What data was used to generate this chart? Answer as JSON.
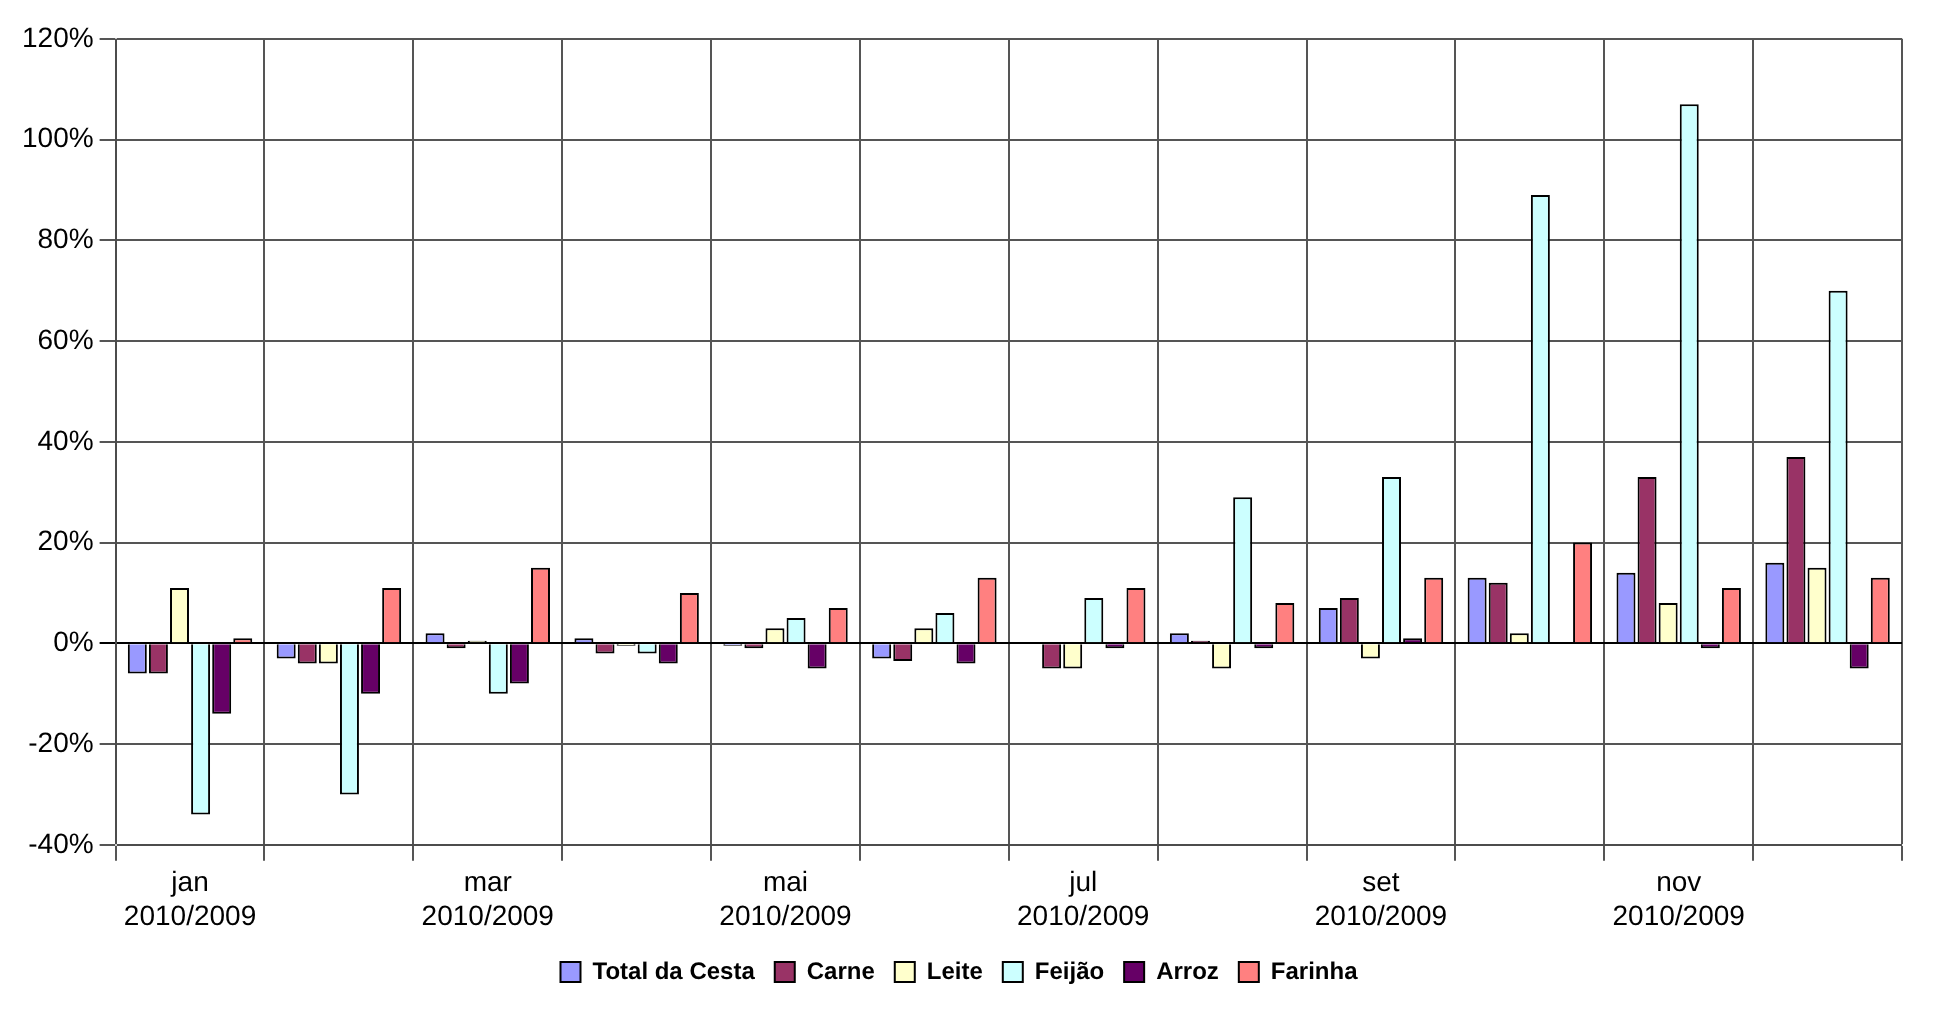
{
  "chart_data": {
    "type": "bar",
    "categories": [
      "jan\n2010/2009",
      null,
      "mar\n2010/2009",
      null,
      "mai\n2010/2009",
      null,
      "jul\n2010/2009",
      null,
      "set\n2010/2009",
      null,
      "nov\n2010/2009",
      null
    ],
    "series": [
      {
        "name": "Total da Cesta",
        "color": "#9999ff",
        "values": [
          -6,
          -3,
          2,
          1,
          -0.5,
          -3,
          0,
          2,
          7,
          13,
          14,
          16
        ]
      },
      {
        "name": "Carne",
        "color": "#993366",
        "values": [
          -6,
          -4,
          -1,
          -2,
          -1,
          -3.5,
          -5,
          0.5,
          9,
          12,
          33,
          37
        ]
      },
      {
        "name": "Leite",
        "color": "#ffffcc",
        "values": [
          11,
          -4,
          0.5,
          -0.5,
          3,
          3,
          -5,
          -5,
          -3,
          2,
          8,
          15
        ]
      },
      {
        "name": "Feijão",
        "color": "#ccffff",
        "values": [
          -34,
          -30,
          -10,
          -2,
          5,
          6,
          9,
          29,
          33,
          89,
          107,
          70
        ]
      },
      {
        "name": "Arroz",
        "color": "#660066",
        "values": [
          -14,
          -10,
          -8,
          -4,
          -5,
          -4,
          -1,
          -1,
          1,
          0,
          -1,
          -5
        ]
      },
      {
        "name": "Farinha",
        "color": "#ff8080",
        "values": [
          1,
          11,
          15,
          10,
          7,
          13,
          11,
          8,
          13,
          20,
          11,
          13
        ]
      }
    ],
    "ylim": [
      -40,
      120
    ],
    "yticks": [
      {
        "value": -40,
        "label": "-40%"
      },
      {
        "value": -20,
        "label": "-20%"
      },
      {
        "value": 0,
        "label": "0%"
      },
      {
        "value": 20,
        "label": "20%"
      },
      {
        "value": 40,
        "label": "40%"
      },
      {
        "value": 60,
        "label": "60%"
      },
      {
        "value": 80,
        "label": "80%"
      },
      {
        "value": 100,
        "label": "100%"
      },
      {
        "value": 120,
        "label": "120%"
      }
    ],
    "grid": true,
    "legend": "bottom"
  }
}
